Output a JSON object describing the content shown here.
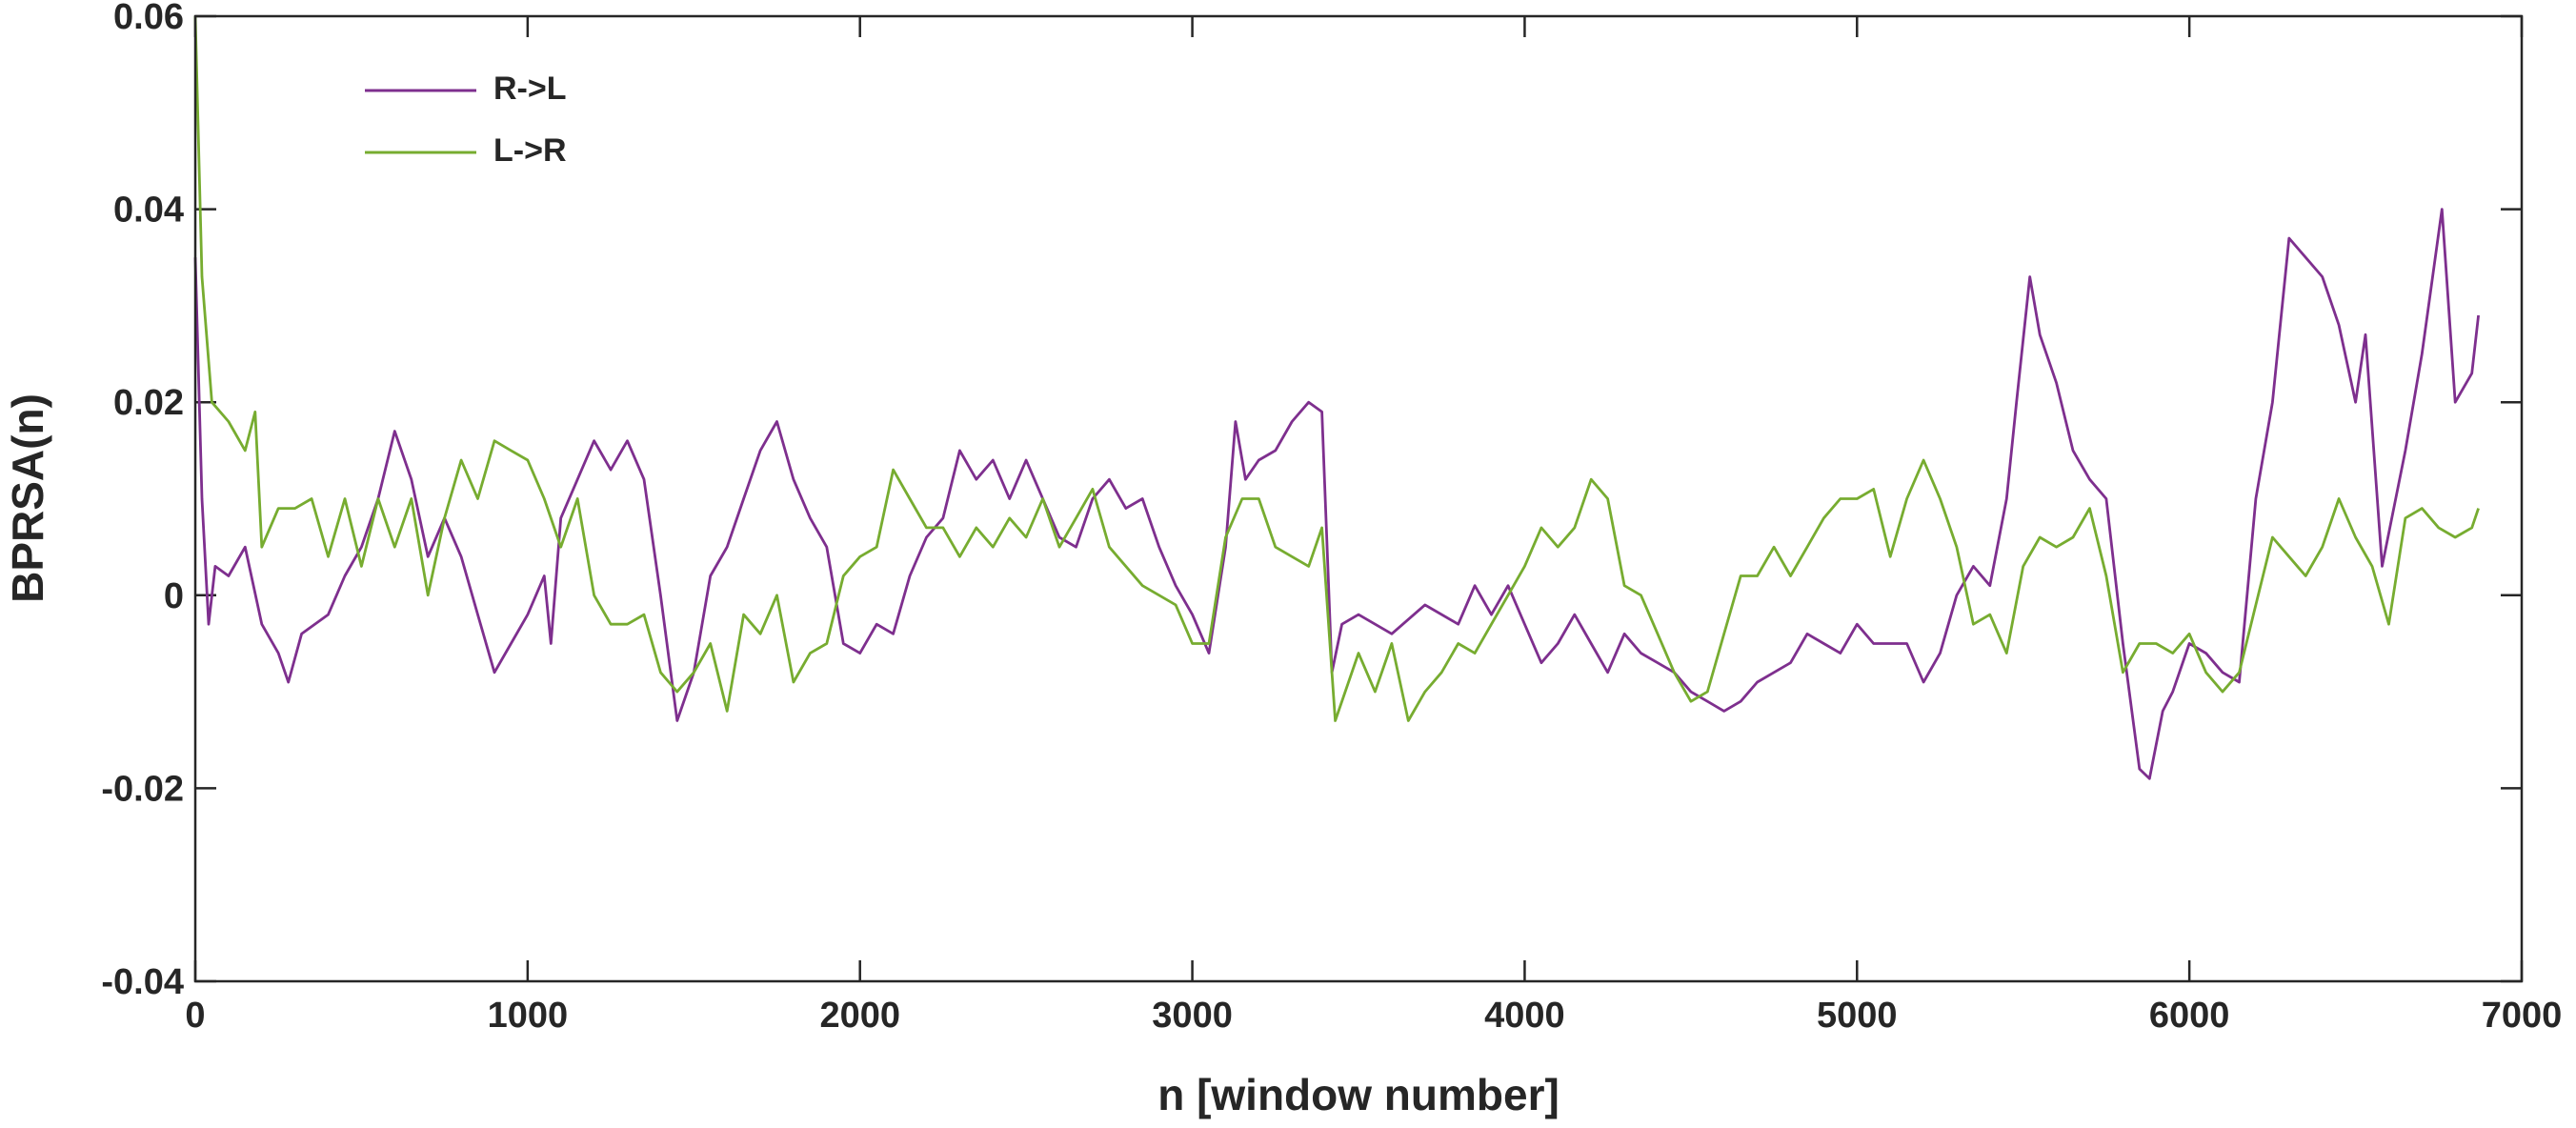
{
  "chart_data": {
    "type": "line",
    "xlabel": "n [window number]",
    "ylabel": "BPRSA(n)",
    "xlim": [
      0,
      7000
    ],
    "xticks": [
      0,
      1000,
      2000,
      3000,
      4000,
      5000,
      6000,
      7000
    ],
    "ylim": [
      -0.04,
      0.06
    ],
    "yticks": [
      -0.04,
      -0.02,
      0,
      0.02,
      0.04,
      0.06
    ],
    "legend": "upper left",
    "series": [
      {
        "name": "R->L",
        "color": "#7e2f8e",
        "x": [
          0,
          20,
          40,
          60,
          100,
          150,
          200,
          250,
          280,
          320,
          400,
          450,
          500,
          550,
          600,
          650,
          700,
          750,
          800,
          850,
          900,
          950,
          1000,
          1050,
          1070,
          1100,
          1150,
          1200,
          1250,
          1300,
          1350,
          1400,
          1450,
          1500,
          1550,
          1600,
          1650,
          1700,
          1750,
          1800,
          1850,
          1900,
          1950,
          2000,
          2050,
          2100,
          2150,
          2200,
          2250,
          2300,
          2350,
          2400,
          2450,
          2500,
          2550,
          2600,
          2650,
          2700,
          2750,
          2800,
          2850,
          2900,
          2950,
          3000,
          3050,
          3100,
          3130,
          3160,
          3200,
          3250,
          3300,
          3350,
          3390,
          3420,
          3450,
          3500,
          3600,
          3700,
          3800,
          3850,
          3900,
          3950,
          4000,
          4050,
          4100,
          4150,
          4200,
          4250,
          4300,
          4350,
          4400,
          4450,
          4500,
          4550,
          4600,
          4650,
          4700,
          4750,
          4800,
          4850,
          4900,
          4950,
          5000,
          5050,
          5100,
          5150,
          5200,
          5250,
          5300,
          5350,
          5400,
          5450,
          5480,
          5520,
          5550,
          5600,
          5650,
          5700,
          5750,
          5800,
          5850,
          5880,
          5920,
          5950,
          6000,
          6050,
          6100,
          6150,
          6200,
          6250,
          6300,
          6350,
          6400,
          6450,
          6500,
          6530,
          6580,
          6650,
          6700,
          6760,
          6800,
          6850,
          6870
        ],
        "values": [
          0.035,
          0.01,
          -0.003,
          0.003,
          0.002,
          0.005,
          -0.003,
          -0.006,
          -0.009,
          -0.004,
          -0.002,
          0.002,
          0.005,
          0.01,
          0.017,
          0.012,
          0.004,
          0.008,
          0.004,
          -0.002,
          -0.008,
          -0.005,
          -0.002,
          0.002,
          -0.005,
          0.008,
          0.012,
          0.016,
          0.013,
          0.016,
          0.012,
          0.0,
          -0.013,
          -0.008,
          0.002,
          0.005,
          0.01,
          0.015,
          0.018,
          0.012,
          0.008,
          0.005,
          -0.005,
          -0.006,
          -0.003,
          -0.004,
          0.002,
          0.006,
          0.008,
          0.015,
          0.012,
          0.014,
          0.01,
          0.014,
          0.01,
          0.006,
          0.005,
          0.01,
          0.012,
          0.009,
          0.01,
          0.005,
          0.001,
          -0.002,
          -0.006,
          0.005,
          0.018,
          0.012,
          0.014,
          0.015,
          0.018,
          0.02,
          0.019,
          -0.008,
          -0.003,
          -0.002,
          -0.004,
          -0.001,
          -0.003,
          0.001,
          -0.002,
          0.001,
          -0.003,
          -0.007,
          -0.005,
          -0.002,
          -0.005,
          -0.008,
          -0.004,
          -0.006,
          -0.007,
          -0.008,
          -0.01,
          -0.011,
          -0.012,
          -0.011,
          -0.009,
          -0.008,
          -0.007,
          -0.004,
          -0.005,
          -0.006,
          -0.003,
          -0.005,
          -0.005,
          -0.005,
          -0.009,
          -0.006,
          0.0,
          0.003,
          0.001,
          0.01,
          0.02,
          0.033,
          0.027,
          0.022,
          0.015,
          0.012,
          0.01,
          -0.005,
          -0.018,
          -0.019,
          -0.012,
          -0.01,
          -0.005,
          -0.006,
          -0.008,
          -0.009,
          0.01,
          0.02,
          0.037,
          0.035,
          0.033,
          0.028,
          0.02,
          0.027,
          0.003,
          0.015,
          0.025,
          0.04,
          0.02,
          0.023,
          0.029
        ]
      },
      {
        "name": "L->R",
        "color": "#77ac30",
        "x": [
          0,
          20,
          50,
          100,
          150,
          180,
          200,
          250,
          300,
          350,
          400,
          450,
          500,
          550,
          600,
          650,
          700,
          750,
          800,
          850,
          900,
          950,
          1000,
          1050,
          1100,
          1150,
          1200,
          1250,
          1300,
          1350,
          1400,
          1450,
          1500,
          1550,
          1600,
          1650,
          1700,
          1750,
          1800,
          1850,
          1900,
          1950,
          2000,
          2050,
          2100,
          2150,
          2200,
          2250,
          2300,
          2350,
          2400,
          2450,
          2500,
          2550,
          2600,
          2650,
          2700,
          2750,
          2800,
          2850,
          2900,
          2950,
          3000,
          3050,
          3100,
          3150,
          3200,
          3250,
          3300,
          3350,
          3390,
          3430,
          3500,
          3550,
          3600,
          3650,
          3700,
          3750,
          3800,
          3850,
          3900,
          3950,
          4000,
          4050,
          4100,
          4150,
          4200,
          4250,
          4300,
          4350,
          4400,
          4450,
          4500,
          4550,
          4600,
          4650,
          4700,
          4750,
          4800,
          4850,
          4900,
          4950,
          5000,
          5050,
          5100,
          5150,
          5200,
          5250,
          5300,
          5350,
          5400,
          5450,
          5500,
          5550,
          5600,
          5650,
          5700,
          5750,
          5800,
          5850,
          5900,
          5950,
          6000,
          6050,
          6100,
          6150,
          6200,
          6250,
          6300,
          6350,
          6400,
          6450,
          6500,
          6550,
          6600,
          6650,
          6700,
          6750,
          6800,
          6850,
          6870
        ],
        "values": [
          0.06,
          0.033,
          0.02,
          0.018,
          0.015,
          0.019,
          0.005,
          0.009,
          0.009,
          0.01,
          0.004,
          0.01,
          0.003,
          0.01,
          0.005,
          0.01,
          0.0,
          0.008,
          0.014,
          0.01,
          0.016,
          0.015,
          0.014,
          0.01,
          0.005,
          0.01,
          0.0,
          -0.003,
          -0.003,
          -0.002,
          -0.008,
          -0.01,
          -0.008,
          -0.005,
          -0.012,
          -0.002,
          -0.004,
          0.0,
          -0.009,
          -0.006,
          -0.005,
          0.002,
          0.004,
          0.005,
          0.013,
          0.01,
          0.007,
          0.007,
          0.004,
          0.007,
          0.005,
          0.008,
          0.006,
          0.01,
          0.005,
          0.008,
          0.011,
          0.005,
          0.003,
          0.001,
          0.0,
          -0.001,
          -0.005,
          -0.005,
          0.006,
          0.01,
          0.01,
          0.005,
          0.004,
          0.003,
          0.007,
          -0.013,
          -0.006,
          -0.01,
          -0.005,
          -0.013,
          -0.01,
          -0.008,
          -0.005,
          -0.006,
          -0.003,
          0.0,
          0.003,
          0.007,
          0.005,
          0.007,
          0.012,
          0.01,
          0.001,
          0.0,
          -0.004,
          -0.008,
          -0.011,
          -0.01,
          -0.004,
          0.002,
          0.002,
          0.005,
          0.002,
          0.005,
          0.008,
          0.01,
          0.01,
          0.011,
          0.004,
          0.01,
          0.014,
          0.01,
          0.005,
          -0.003,
          -0.002,
          -0.006,
          0.003,
          0.006,
          0.005,
          0.006,
          0.009,
          0.002,
          -0.008,
          -0.005,
          -0.005,
          -0.006,
          -0.004,
          -0.008,
          -0.01,
          -0.008,
          -0.001,
          0.006,
          0.004,
          0.002,
          0.005,
          0.01,
          0.006,
          0.003,
          -0.003,
          0.008,
          0.009,
          0.007,
          0.006,
          0.007,
          0.009
        ]
      }
    ]
  }
}
